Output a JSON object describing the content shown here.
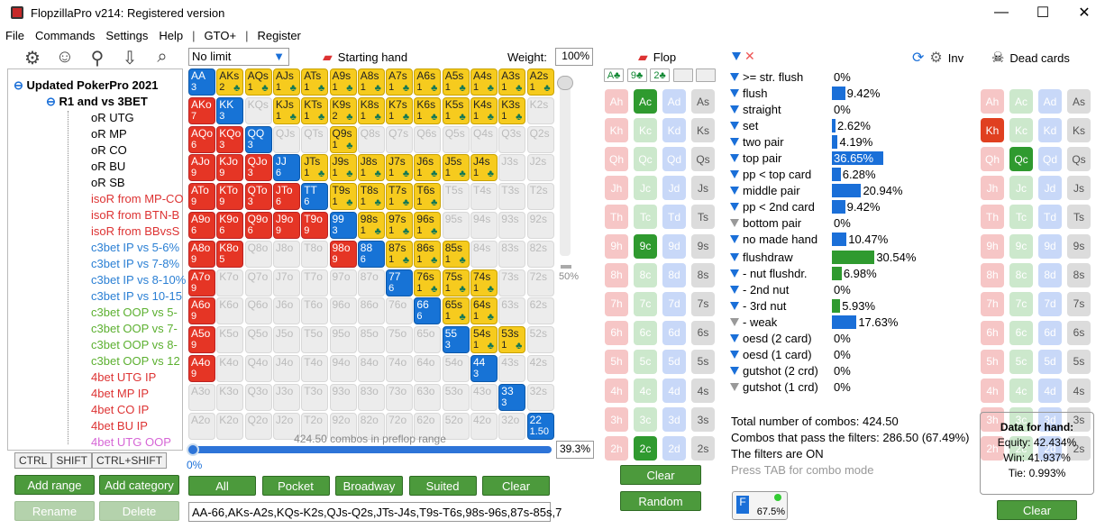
{
  "window": {
    "title": "FlopzillaPro v214: Registered version",
    "min": "—",
    "max": "☐",
    "close": "✕"
  },
  "menu": [
    "File",
    "Commands",
    "Settings",
    "Help",
    "|",
    "GTO+",
    "|",
    "Register"
  ],
  "tree": {
    "root": "Updated PokerPro 2021 ",
    "group": "R1 and vs 3BET",
    "items": [
      {
        "label": "oR UTG",
        "color": "#000"
      },
      {
        "label": "oR MP",
        "color": "#000"
      },
      {
        "label": "oR CO",
        "color": "#000"
      },
      {
        "label": "oR BU",
        "color": "#000"
      },
      {
        "label": "oR SB",
        "color": "#000"
      },
      {
        "label": "isoR from MP-CO",
        "color": "#d33"
      },
      {
        "label": "isoR from BTN-B",
        "color": "#d33"
      },
      {
        "label": "isoR from BBvsS",
        "color": "#d33"
      },
      {
        "label": "c3bet IP vs 5-6%",
        "color": "#2a7fd4"
      },
      {
        "label": "c3bet IP vs 7-8%",
        "color": "#2a7fd4"
      },
      {
        "label": "c3bet IP vs 8-10%",
        "color": "#2a7fd4"
      },
      {
        "label": "c3bet IP vs 10-15",
        "color": "#2a7fd4"
      },
      {
        "label": "c3bet OOP vs 5-",
        "color": "#5cb030"
      },
      {
        "label": "c3bet OOP vs 7-",
        "color": "#5cb030"
      },
      {
        "label": "c3bet OOP vs 8-",
        "color": "#5cb030"
      },
      {
        "label": "c3bet OOP vs 12",
        "color": "#5cb030"
      },
      {
        "label": "4bet UTG IP",
        "color": "#d33"
      },
      {
        "label": "4bet MP IP",
        "color": "#d33"
      },
      {
        "label": "4bet CO IP",
        "color": "#d33"
      },
      {
        "label": "4bet BU IP",
        "color": "#d33"
      },
      {
        "label": "4bet UTG OOP",
        "color": "#d666d6"
      }
    ]
  },
  "tabs": [
    "CTRL",
    "SHIFT",
    "CTRL+SHIFT"
  ],
  "left_buttons": {
    "add_range": "Add range",
    "add_category": "Add category",
    "rename": "Rename",
    "delete": "Delete"
  },
  "range": {
    "game": "No limit",
    "starting_hand": "Starting hand",
    "weight_label": "Weight:",
    "weight": "100%",
    "slider_pct": "50%",
    "combos_text": "424.50 combos in preflop range",
    "progress_left": "0%",
    "progress_right": "39.3%",
    "buttons": [
      "All",
      "Pocket",
      "Broadway",
      "Suited",
      "Clear"
    ],
    "range_text": "AA-66,AKs-A2s,KQs-K2s,QJs-Q2s,JTs-J4s,T9s-T6s,98s-96s,87s-85s,7"
  },
  "matrix": [
    [
      [
        "AA",
        "3",
        "b"
      ],
      [
        "AKs",
        "2",
        "y"
      ],
      [
        "AQs",
        "1",
        "y"
      ],
      [
        "AJs",
        "1",
        "y"
      ],
      [
        "ATs",
        "1",
        "y"
      ],
      [
        "A9s",
        "1",
        "y"
      ],
      [
        "A8s",
        "1",
        "y"
      ],
      [
        "A7s",
        "1",
        "y"
      ],
      [
        "A6s",
        "1",
        "y"
      ],
      [
        "A5s",
        "1",
        "y"
      ],
      [
        "A4s",
        "1",
        "y"
      ],
      [
        "A3s",
        "1",
        "y"
      ],
      [
        "A2s",
        "1",
        "y"
      ]
    ],
    [
      [
        "AKo",
        "7",
        "r"
      ],
      [
        "KK",
        "3",
        "b"
      ],
      [
        "KQs",
        "",
        "g"
      ],
      [
        "KJs",
        "1",
        "y"
      ],
      [
        "KTs",
        "1",
        "y"
      ],
      [
        "K9s",
        "2",
        "y"
      ],
      [
        "K8s",
        "1",
        "y"
      ],
      [
        "K7s",
        "1",
        "y"
      ],
      [
        "K6s",
        "1",
        "y"
      ],
      [
        "K5s",
        "1",
        "y"
      ],
      [
        "K4s",
        "1",
        "y"
      ],
      [
        "K3s",
        "1",
        "y"
      ],
      [
        "K2s",
        "",
        "g"
      ]
    ],
    [
      [
        "AQo",
        "6",
        "r"
      ],
      [
        "KQo",
        "3",
        "r"
      ],
      [
        "QQ",
        "3",
        "b"
      ],
      [
        "QJs",
        "",
        "g"
      ],
      [
        "QTs",
        "",
        "g"
      ],
      [
        "Q9s",
        "1",
        "y"
      ],
      [
        "Q8s",
        "",
        "g"
      ],
      [
        "Q7s",
        "",
        "g"
      ],
      [
        "Q6s",
        "",
        "g"
      ],
      [
        "Q5s",
        "",
        "g"
      ],
      [
        "Q4s",
        "",
        "g"
      ],
      [
        "Q3s",
        "",
        "g"
      ],
      [
        "Q2s",
        "",
        "g"
      ]
    ],
    [
      [
        "AJo",
        "9",
        "r"
      ],
      [
        "KJo",
        "9",
        "r"
      ],
      [
        "QJo",
        "3",
        "r"
      ],
      [
        "JJ",
        "6",
        "b"
      ],
      [
        "JTs",
        "1",
        "y"
      ],
      [
        "J9s",
        "1",
        "y"
      ],
      [
        "J8s",
        "1",
        "y"
      ],
      [
        "J7s",
        "1",
        "y"
      ],
      [
        "J6s",
        "1",
        "y"
      ],
      [
        "J5s",
        "1",
        "y"
      ],
      [
        "J4s",
        "1",
        "y"
      ],
      [
        "J3s",
        "",
        "g"
      ],
      [
        "J2s",
        "",
        "g"
      ]
    ],
    [
      [
        "ATo",
        "9",
        "r"
      ],
      [
        "KTo",
        "9",
        "r"
      ],
      [
        "QTo",
        "3",
        "r"
      ],
      [
        "JTo",
        "6",
        "r"
      ],
      [
        "TT",
        "6",
        "b"
      ],
      [
        "T9s",
        "1",
        "y"
      ],
      [
        "T8s",
        "1",
        "y"
      ],
      [
        "T7s",
        "1",
        "y"
      ],
      [
        "T6s",
        "1",
        "y"
      ],
      [
        "T5s",
        "",
        "g"
      ],
      [
        "T4s",
        "",
        "g"
      ],
      [
        "T3s",
        "",
        "g"
      ],
      [
        "T2s",
        "",
        "g"
      ]
    ],
    [
      [
        "A9o",
        "6",
        "r"
      ],
      [
        "K9o",
        "6",
        "r"
      ],
      [
        "Q9o",
        "6",
        "r"
      ],
      [
        "J9o",
        "9",
        "r"
      ],
      [
        "T9o",
        "9",
        "r"
      ],
      [
        "99",
        "3",
        "b"
      ],
      [
        "98s",
        "1",
        "y"
      ],
      [
        "97s",
        "1",
        "y"
      ],
      [
        "96s",
        "1",
        "y"
      ],
      [
        "95s",
        "",
        "g"
      ],
      [
        "94s",
        "",
        "g"
      ],
      [
        "93s",
        "",
        "g"
      ],
      [
        "92s",
        "",
        "g"
      ]
    ],
    [
      [
        "A8o",
        "9",
        "r"
      ],
      [
        "K8o",
        "5",
        "r"
      ],
      [
        "Q8o",
        "",
        "g"
      ],
      [
        "J8o",
        "",
        "g"
      ],
      [
        "T8o",
        "",
        "g"
      ],
      [
        "98o",
        "9",
        "r"
      ],
      [
        "88",
        "6",
        "b"
      ],
      [
        "87s",
        "1",
        "y"
      ],
      [
        "86s",
        "1",
        "y"
      ],
      [
        "85s",
        "1",
        "y"
      ],
      [
        "84s",
        "",
        "g"
      ],
      [
        "83s",
        "",
        "g"
      ],
      [
        "82s",
        "",
        "g"
      ]
    ],
    [
      [
        "A7o",
        "9",
        "r"
      ],
      [
        "K7o",
        "",
        "g"
      ],
      [
        "Q7o",
        "",
        "g"
      ],
      [
        "J7o",
        "",
        "g"
      ],
      [
        "T7o",
        "",
        "g"
      ],
      [
        "97o",
        "",
        "g"
      ],
      [
        "87o",
        "",
        "g"
      ],
      [
        "77",
        "6",
        "b"
      ],
      [
        "76s",
        "1",
        "y"
      ],
      [
        "75s",
        "1",
        "y"
      ],
      [
        "74s",
        "1",
        "y"
      ],
      [
        "73s",
        "",
        "g"
      ],
      [
        "72s",
        "",
        "g"
      ]
    ],
    [
      [
        "A6o",
        "9",
        "r"
      ],
      [
        "K6o",
        "",
        "g"
      ],
      [
        "Q6o",
        "",
        "g"
      ],
      [
        "J6o",
        "",
        "g"
      ],
      [
        "T6o",
        "",
        "g"
      ],
      [
        "96o",
        "",
        "g"
      ],
      [
        "86o",
        "",
        "g"
      ],
      [
        "76o",
        "",
        "g"
      ],
      [
        "66",
        "6",
        "b"
      ],
      [
        "65s",
        "1",
        "y"
      ],
      [
        "64s",
        "1",
        "y"
      ],
      [
        "63s",
        "",
        "g"
      ],
      [
        "62s",
        "",
        "g"
      ]
    ],
    [
      [
        "A5o",
        "9",
        "r"
      ],
      [
        "K5o",
        "",
        "g"
      ],
      [
        "Q5o",
        "",
        "g"
      ],
      [
        "J5o",
        "",
        "g"
      ],
      [
        "T5o",
        "",
        "g"
      ],
      [
        "95o",
        "",
        "g"
      ],
      [
        "85o",
        "",
        "g"
      ],
      [
        "75o",
        "",
        "g"
      ],
      [
        "65o",
        "",
        "g"
      ],
      [
        "55",
        "3",
        "b"
      ],
      [
        "54s",
        "1",
        "y"
      ],
      [
        "53s",
        "1",
        "y"
      ],
      [
        "52s",
        "",
        "g"
      ]
    ],
    [
      [
        "A4o",
        "9",
        "r"
      ],
      [
        "K4o",
        "",
        "g"
      ],
      [
        "Q4o",
        "",
        "g"
      ],
      [
        "J4o",
        "",
        "g"
      ],
      [
        "T4o",
        "",
        "g"
      ],
      [
        "94o",
        "",
        "g"
      ],
      [
        "84o",
        "",
        "g"
      ],
      [
        "74o",
        "",
        "g"
      ],
      [
        "64o",
        "",
        "g"
      ],
      [
        "54o",
        "",
        "g"
      ],
      [
        "44",
        "3",
        "b"
      ],
      [
        "43s",
        "",
        "g"
      ],
      [
        "42s",
        "",
        "g"
      ]
    ],
    [
      [
        "A3o",
        "",
        "g"
      ],
      [
        "K3o",
        "",
        "g"
      ],
      [
        "Q3o",
        "",
        "g"
      ],
      [
        "J3o",
        "",
        "g"
      ],
      [
        "T3o",
        "",
        "g"
      ],
      [
        "93o",
        "",
        "g"
      ],
      [
        "83o",
        "",
        "g"
      ],
      [
        "73o",
        "",
        "g"
      ],
      [
        "63o",
        "",
        "g"
      ],
      [
        "53o",
        "",
        "g"
      ],
      [
        "43o",
        "",
        "g"
      ],
      [
        "33",
        "3",
        "b"
      ],
      [
        "32s",
        "",
        "g"
      ]
    ],
    [
      [
        "A2o",
        "",
        "g"
      ],
      [
        "K2o",
        "",
        "g"
      ],
      [
        "Q2o",
        "",
        "g"
      ],
      [
        "J2o",
        "",
        "g"
      ],
      [
        "T2o",
        "",
        "g"
      ],
      [
        "92o",
        "",
        "g"
      ],
      [
        "82o",
        "",
        "g"
      ],
      [
        "72o",
        "",
        "g"
      ],
      [
        "62o",
        "",
        "g"
      ],
      [
        "52o",
        "",
        "g"
      ],
      [
        "42o",
        "",
        "g"
      ],
      [
        "32o",
        "",
        "g"
      ],
      [
        "22",
        "1.50",
        "b"
      ]
    ]
  ],
  "flop": {
    "title": "Flop",
    "board": [
      "A♣",
      "9♣",
      "2♣",
      "",
      ""
    ],
    "ranks": [
      "A",
      "K",
      "Q",
      "J",
      "T",
      "9",
      "8",
      "7",
      "6",
      "5",
      "4",
      "3",
      "2"
    ],
    "on": [
      "Ac",
      "9c",
      "2c"
    ],
    "clear": "Clear",
    "random": "Random"
  },
  "filters": {
    "rows": [
      {
        "label": ">= str. flush",
        "val": "0%",
        "pct": 0,
        "col": "blue"
      },
      {
        "label": "flush",
        "val": "9.42%",
        "pct": 9.42,
        "col": "blue"
      },
      {
        "label": "straight",
        "val": "0%",
        "pct": 0,
        "col": "blue"
      },
      {
        "label": "set",
        "val": "2.62%",
        "pct": 2.62,
        "col": "blue"
      },
      {
        "label": "two pair",
        "val": "4.19%",
        "pct": 4.19,
        "col": "blue"
      },
      {
        "label": "top pair",
        "val": "36.65%",
        "pct": 36.65,
        "col": "blue"
      },
      {
        "label": "pp < top card",
        "val": "6.28%",
        "pct": 6.28,
        "col": "blue"
      },
      {
        "label": "middle pair",
        "val": "20.94%",
        "pct": 20.94,
        "col": "blue"
      },
      {
        "label": "pp < 2nd card",
        "val": "9.42%",
        "pct": 9.42,
        "col": "blue"
      },
      {
        "label": "bottom pair",
        "val": "0%",
        "pct": 0,
        "col": "grey"
      },
      {
        "label": "no made hand",
        "val": "10.47%",
        "pct": 10.47,
        "col": "blue"
      },
      {
        "label": "flushdraw",
        "val": "30.54%",
        "pct": 30.54,
        "col": "green"
      },
      {
        "label": "- nut flushdr.",
        "val": "6.98%",
        "pct": 6.98,
        "col": "green"
      },
      {
        "label": "- 2nd nut",
        "val": "0%",
        "pct": 0,
        "col": "green"
      },
      {
        "label": "- 3rd nut",
        "val": "5.93%",
        "pct": 5.93,
        "col": "green"
      },
      {
        "label": "- weak",
        "val": "17.63%",
        "pct": 17.63,
        "col": "grey"
      },
      {
        "label": "oesd (2 card)",
        "val": "0%",
        "pct": 0,
        "col": "blue"
      },
      {
        "label": "oesd (1 card)",
        "val": "0%",
        "pct": 0,
        "col": "blue"
      },
      {
        "label": "gutshot (2 crd)",
        "val": "0%",
        "pct": 0,
        "col": "blue"
      },
      {
        "label": "gutshot (1 crd)",
        "val": "0%",
        "pct": 0,
        "col": "grey"
      }
    ],
    "total": "Total number of combos: 424.50",
    "pass": "Combos that pass the filters: 286.50 (67.49%)",
    "filters_on": "The filters are ON",
    "tab_hint": "Press TAB for combo mode",
    "fbtn": "67.5%",
    "inv": "Inv"
  },
  "dead": {
    "title": "Dead cards",
    "on": [
      "Kh",
      "Qc"
    ],
    "clear": "Clear"
  },
  "hand_data": {
    "title": "Data for hand:",
    "equity": "Equity: 42.434%",
    "win": "Win: 41.937%",
    "tie": "Tie: 0.993%"
  }
}
